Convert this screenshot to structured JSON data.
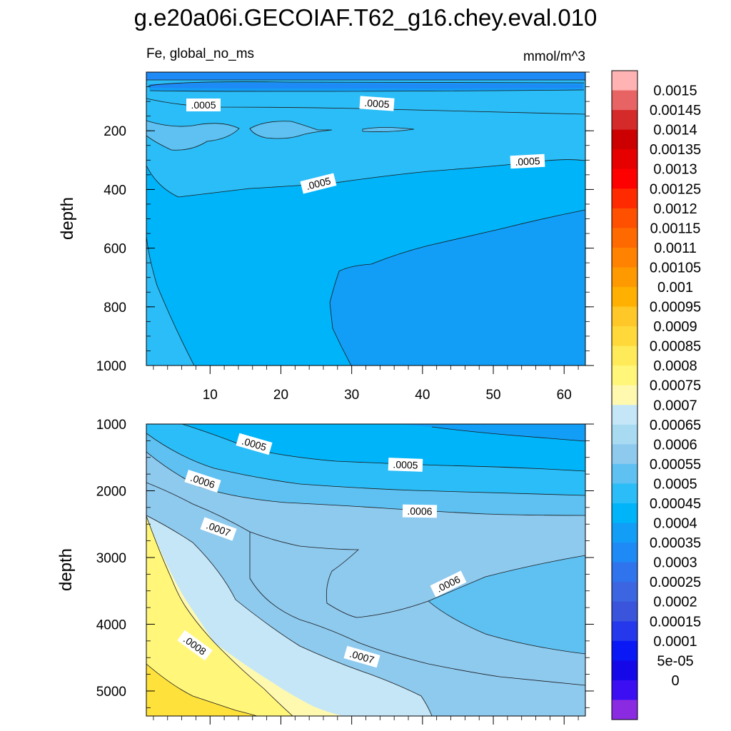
{
  "title": "g.e20a06i.GECOIAF.T62_g16.chey.eval.010",
  "subtitle_left": "Fe, global_no_ms",
  "subtitle_right": "mmol/m^3",
  "chart_data": {
    "type": "contour",
    "variable": "Fe",
    "region": "global_no_ms",
    "units": "mmol/m^3",
    "x_axis": {
      "label": "",
      "range": [
        1,
        63
      ],
      "ticks": [
        10,
        20,
        30,
        40,
        50,
        60
      ]
    },
    "panels": [
      {
        "name": "upper",
        "ylabel": "depth",
        "y_range": [
          0,
          1000
        ],
        "y_ticks": [
          200,
          400,
          600,
          800,
          1000
        ],
        "contour_labels": [
          ".0005",
          ".0005",
          ".0005",
          ".0005"
        ]
      },
      {
        "name": "lower",
        "ylabel": "depth",
        "y_range": [
          1000,
          5375
        ],
        "y_ticks": [
          1000,
          2000,
          3000,
          4000,
          5000
        ],
        "contour_labels": [
          ".0005",
          ".0005",
          ".0006",
          ".0006",
          ".0006",
          ".0007",
          ".0007",
          ".0008"
        ]
      }
    ],
    "colorbar": {
      "levels": [
        "0.0015",
        "0.00145",
        "0.0014",
        "0.00135",
        "0.0013",
        "0.00125",
        "0.0012",
        "0.00115",
        "0.0011",
        "0.00105",
        "0.001",
        "0.00095",
        "0.0009",
        "0.00085",
        "0.0008",
        "0.00075",
        "0.0007",
        "0.00065",
        "0.0006",
        "0.00055",
        "0.0005",
        "0.00045",
        "0.0004",
        "0.00035",
        "0.0003",
        "0.00025",
        "0.0002",
        "0.00015",
        "0.0001",
        "5e-05",
        "0"
      ],
      "colors": [
        "#ffb3b3",
        "#e86464",
        "#d42a2a",
        "#cc0000",
        "#e60000",
        "#ff0000",
        "#ff2a00",
        "#ff5000",
        "#ff6a00",
        "#ff8200",
        "#ff9900",
        "#ffb000",
        "#ffc828",
        "#ffd93a",
        "#ffeb5a",
        "#fff67a",
        "#fff9b0",
        "#c4e6f7",
        "#a8daf2",
        "#8ec9ee",
        "#5ec1f2",
        "#2bbdf7",
        "#00b4f9",
        "#129ef7",
        "#1e8af5",
        "#2f74ec",
        "#3c65e2",
        "#3a55dc",
        "#2638ec",
        "#0a18f5",
        "#1408e8",
        "#3c0ef2",
        "#8a2be2"
      ]
    }
  }
}
